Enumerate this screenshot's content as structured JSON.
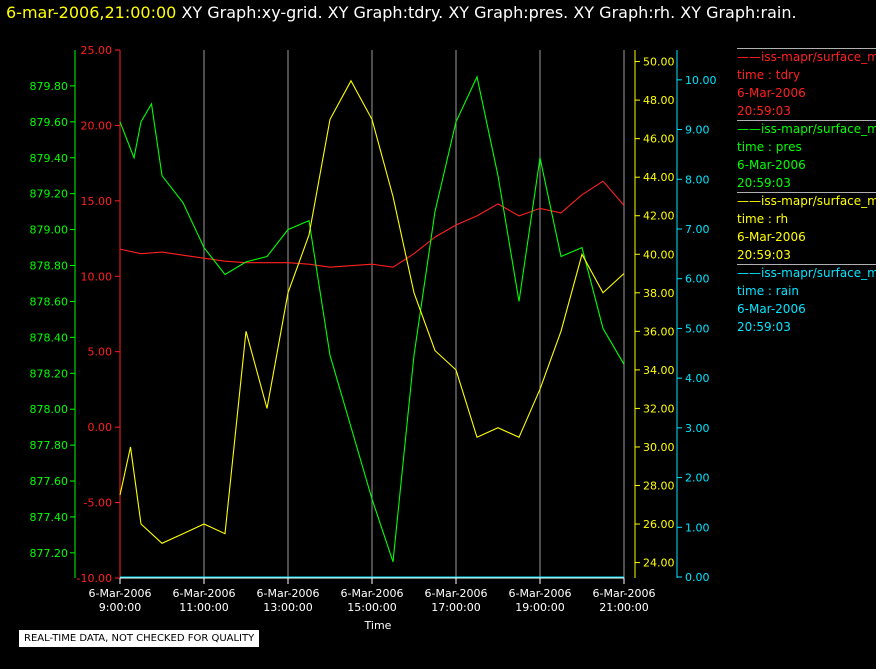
{
  "header": {
    "timestamp": "6-mar-2006,21:00:00",
    "graphs": "XY Graph:xy-grid.  XY Graph:tdry.  XY Graph:pres.  XY Graph:rh.  XY Graph:rain."
  },
  "quality_note": "REAL-TIME DATA, NOT CHECKED FOR QUALITY",
  "legend": [
    {
      "label": "——iss-mapr/surface_m",
      "field": "time : tdry",
      "date": "6-Mar-2006",
      "time": "20:59:03",
      "color": "#ff2020"
    },
    {
      "label": "——iss-mapr/surface_m",
      "field": "time : pres",
      "date": "6-Mar-2006",
      "time": "20:59:03",
      "color": "#00ff00"
    },
    {
      "label": "——iss-mapr/surface_m",
      "field": "time : rh",
      "date": "6-Mar-2006",
      "time": "20:59:03",
      "color": "#ffff00"
    },
    {
      "label": "——iss-mapr/surface_m",
      "field": "time : rain",
      "date": "6-Mar-2006",
      "time": "20:59:03",
      "color": "#00e5ff"
    }
  ],
  "chart_data": {
    "type": "line",
    "xlabel": "Time",
    "x_ticks": [
      {
        "date": "6-Mar-2006",
        "time": "9:00:00"
      },
      {
        "date": "6-Mar-2006",
        "time": "11:00:00"
      },
      {
        "date": "6-Mar-2006",
        "time": "13:00:00"
      },
      {
        "date": "6-Mar-2006",
        "time": "15:00:00"
      },
      {
        "date": "6-Mar-2006",
        "time": "17:00:00"
      },
      {
        "date": "6-Mar-2006",
        "time": "19:00:00"
      },
      {
        "date": "6-Mar-2006",
        "time": "21:00:00"
      }
    ],
    "xlim": [
      "2006-03-06 09:00",
      "2006-03-06 21:00"
    ],
    "grid": true,
    "axes": [
      {
        "id": "pres",
        "side": "left",
        "color": "#00ff00",
        "ylim": [
          877.06,
          880.0
        ],
        "ticks": [
          "877.20",
          "877.40",
          "877.60",
          "877.80",
          "878.00",
          "878.20",
          "878.40",
          "878.60",
          "878.80",
          "879.00",
          "879.20",
          "879.40",
          "879.60",
          "879.80"
        ]
      },
      {
        "id": "tdry",
        "side": "left",
        "color": "#ff2020",
        "ylim": [
          -10.0,
          25.0
        ],
        "ticks": [
          "-10.00",
          "-5.00",
          "0.00",
          "5.00",
          "10.00",
          "15.00",
          "20.00",
          "25.00"
        ]
      },
      {
        "id": "rh",
        "side": "right",
        "color": "#ffff00",
        "ylim": [
          23.2,
          50.6
        ],
        "ticks": [
          "24.00",
          "26.00",
          "28.00",
          "30.00",
          "32.00",
          "34.00",
          "36.00",
          "38.00",
          "40.00",
          "42.00",
          "44.00",
          "46.00",
          "48.00",
          "50.00"
        ]
      },
      {
        "id": "rain",
        "side": "right",
        "color": "#00e5ff",
        "ylim": [
          -0.02,
          10.6
        ],
        "ticks": [
          "0.00",
          "1.00",
          "2.00",
          "3.00",
          "4.00",
          "5.00",
          "6.00",
          "7.00",
          "8.00",
          "9.00",
          "10.00"
        ]
      }
    ],
    "series": [
      {
        "axis": "tdry",
        "color": "#ff2020",
        "x": [
          "2006-03-06 09:00",
          "2006-03-06 09:30",
          "2006-03-06 10:00",
          "2006-03-06 10:30",
          "2006-03-06 11:00",
          "2006-03-06 11:30",
          "2006-03-06 12:00",
          "2006-03-06 12:30",
          "2006-03-06 13:00",
          "2006-03-06 13:30",
          "2006-03-06 14:00",
          "2006-03-06 14:30",
          "2006-03-06 15:00",
          "2006-03-06 15:30",
          "2006-03-06 16:00",
          "2006-03-06 16:30",
          "2006-03-06 17:00",
          "2006-03-06 17:30",
          "2006-03-06 18:00",
          "2006-03-06 18:30",
          "2006-03-06 19:00",
          "2006-03-06 19:30",
          "2006-03-06 20:00",
          "2006-03-06 20:30",
          "2006-03-06 21:00"
        ],
        "y": [
          11.8,
          11.5,
          11.6,
          11.4,
          11.2,
          11.0,
          10.9,
          10.9,
          10.9,
          10.8,
          10.6,
          10.7,
          10.8,
          10.6,
          11.5,
          12.6,
          13.4,
          14.0,
          14.8,
          14.0,
          14.5,
          14.2,
          15.4,
          16.3,
          14.7
        ]
      },
      {
        "axis": "pres",
        "color": "#00ff00",
        "x": [
          "2006-03-06 09:00",
          "2006-03-06 09:20",
          "2006-03-06 09:30",
          "2006-03-06 09:45",
          "2006-03-06 10:00",
          "2006-03-06 10:30",
          "2006-03-06 11:00",
          "2006-03-06 11:30",
          "2006-03-06 12:00",
          "2006-03-06 12:30",
          "2006-03-06 13:00",
          "2006-03-06 13:30",
          "2006-03-06 14:00",
          "2006-03-06 14:30",
          "2006-03-06 15:00",
          "2006-03-06 15:30",
          "2006-03-06 16:00",
          "2006-03-06 16:30",
          "2006-03-06 17:00",
          "2006-03-06 17:30",
          "2006-03-06 18:00",
          "2006-03-06 18:30",
          "2006-03-06 19:00",
          "2006-03-06 19:30",
          "2006-03-06 20:00",
          "2006-03-06 20:30",
          "2006-03-06 21:00"
        ],
        "y": [
          879.6,
          879.4,
          879.6,
          879.7,
          879.3,
          879.15,
          878.9,
          878.75,
          878.82,
          878.85,
          879.0,
          879.05,
          878.3,
          877.9,
          877.5,
          877.15,
          878.3,
          879.1,
          879.6,
          879.85,
          879.3,
          878.6,
          879.4,
          878.85,
          878.9,
          878.45,
          878.25
        ]
      },
      {
        "axis": "rh",
        "color": "#ffff00",
        "x": [
          "2006-03-06 09:00",
          "2006-03-06 09:15",
          "2006-03-06 09:30",
          "2006-03-06 10:00",
          "2006-03-06 10:30",
          "2006-03-06 11:00",
          "2006-03-06 11:30",
          "2006-03-06 12:00",
          "2006-03-06 12:30",
          "2006-03-06 13:00",
          "2006-03-06 13:30",
          "2006-03-06 14:00",
          "2006-03-06 14:30",
          "2006-03-06 15:00",
          "2006-03-06 15:30",
          "2006-03-06 16:00",
          "2006-03-06 16:30",
          "2006-03-06 17:00",
          "2006-03-06 17:30",
          "2006-03-06 18:00",
          "2006-03-06 18:30",
          "2006-03-06 19:00",
          "2006-03-06 19:30",
          "2006-03-06 20:00",
          "2006-03-06 20:30",
          "2006-03-06 21:00"
        ],
        "y": [
          27.5,
          30.0,
          26.0,
          25.0,
          25.5,
          26.0,
          25.5,
          36.0,
          32.0,
          38.0,
          41.0,
          47.0,
          49.0,
          47.0,
          43.0,
          38.0,
          35.0,
          34.0,
          30.5,
          31.0,
          30.5,
          33.0,
          36.0,
          40.0,
          38.0,
          39.0
        ]
      },
      {
        "axis": "rain",
        "color": "#00e5ff",
        "x": [
          "2006-03-06 09:00",
          "2006-03-06 21:00"
        ],
        "y": [
          0.0,
          0.0
        ]
      }
    ]
  }
}
